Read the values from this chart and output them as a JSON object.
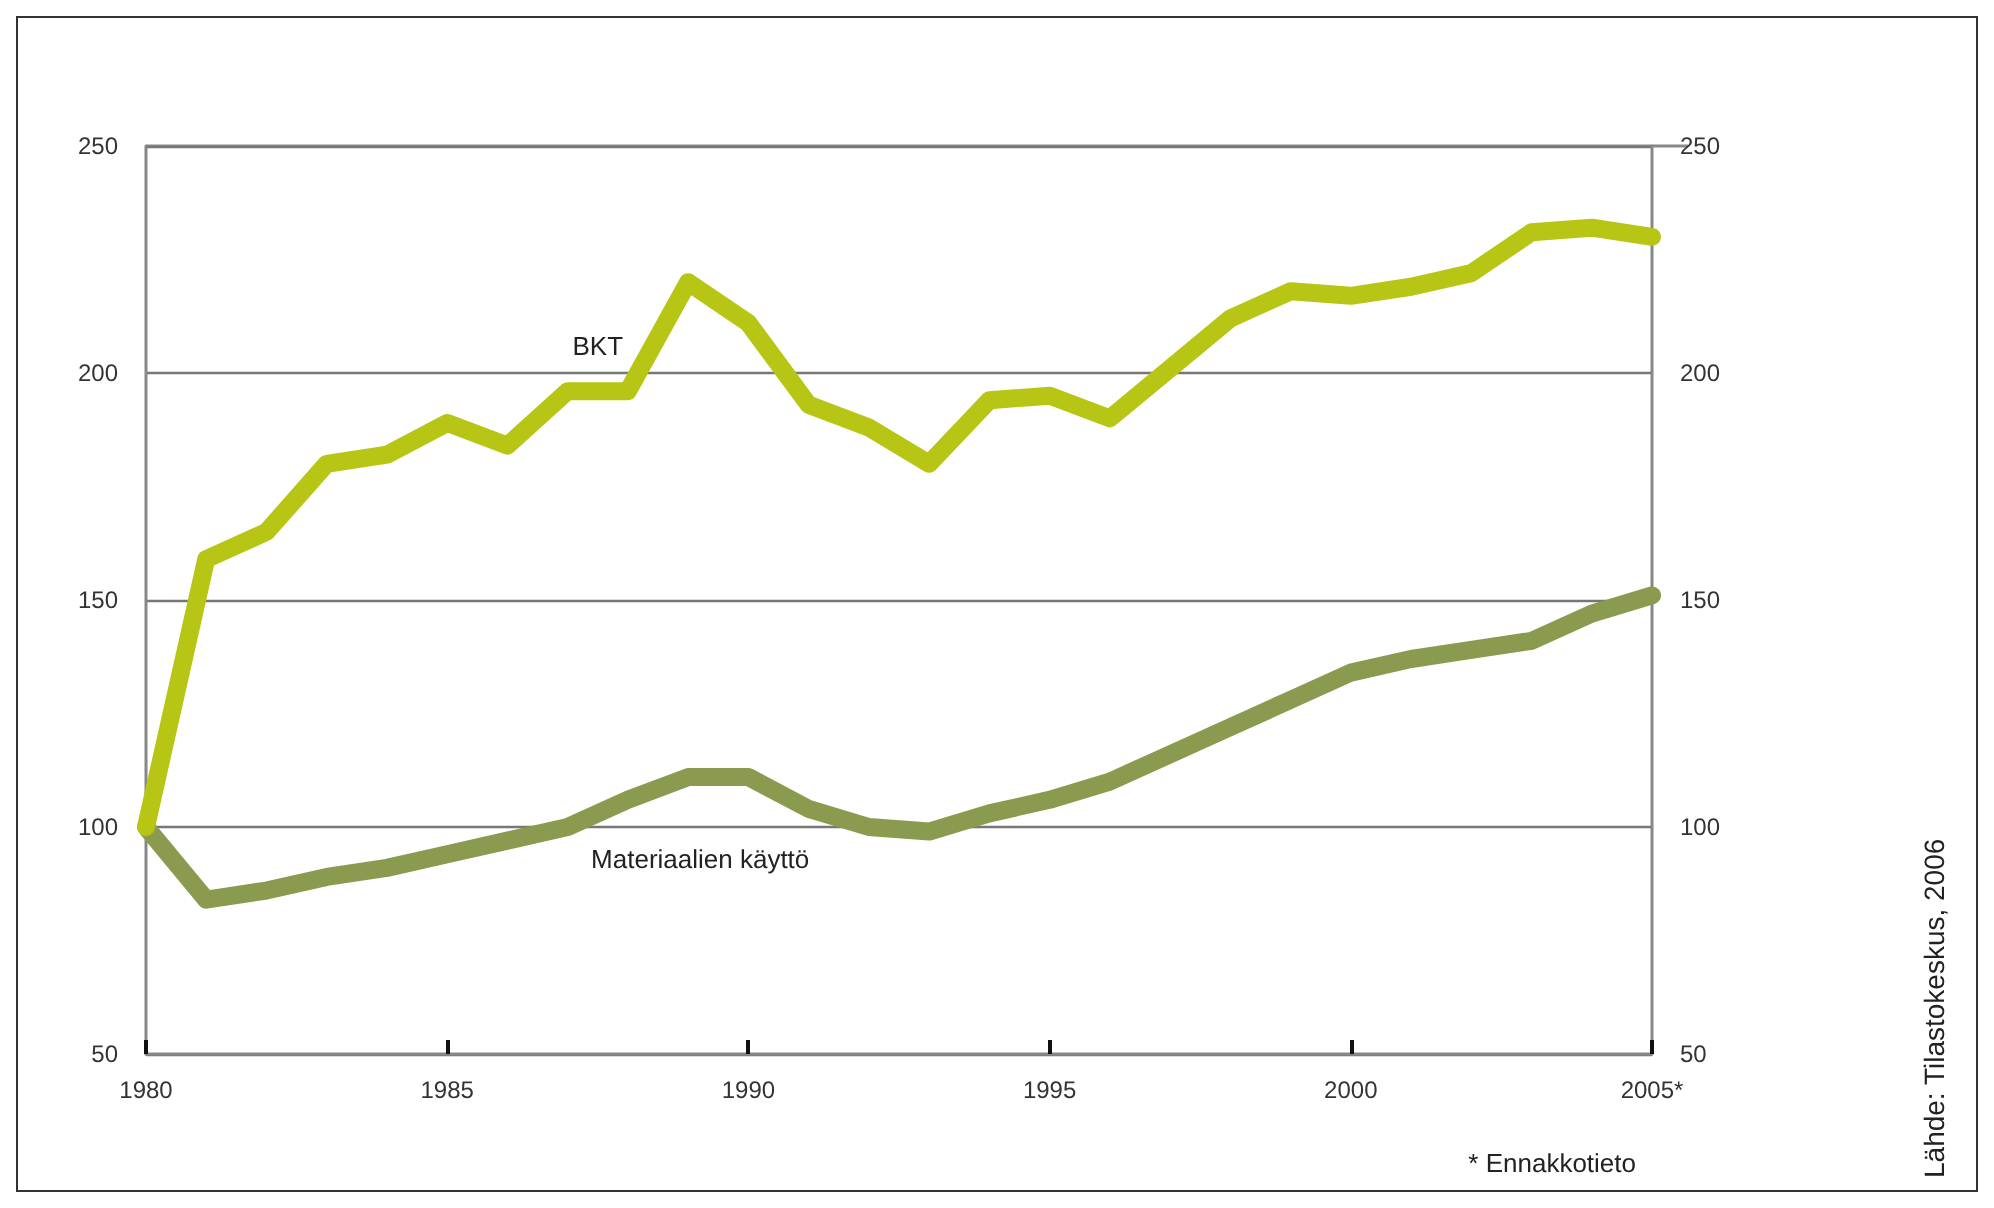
{
  "chart_data": {
    "type": "line",
    "x": [
      1980,
      1981,
      1982,
      1983,
      1984,
      1985,
      1986,
      1987,
      1988,
      1989,
      1990,
      1991,
      1992,
      1993,
      1994,
      1995,
      1996,
      1997,
      1998,
      1999,
      2000,
      2001,
      2002,
      2003,
      2004,
      2005
    ],
    "series": [
      {
        "name": "BKT",
        "color": "#b7c614",
        "values": [
          100,
          159,
          165,
          180,
          182,
          189,
          184,
          196,
          196,
          220,
          211,
          193,
          188,
          180,
          194,
          195,
          190,
          201,
          212,
          218,
          217,
          219,
          222,
          231,
          232,
          230
        ]
      },
      {
        "name": "Materiaalien käyttö",
        "color": "#8a9a4e",
        "values": [
          100,
          84,
          86,
          89,
          91,
          94,
          97,
          100,
          106,
          111,
          111,
          104,
          100,
          99,
          103,
          106,
          110,
          116,
          122,
          128,
          134,
          137,
          139,
          141,
          147,
          151
        ]
      }
    ],
    "xlim": [
      1980,
      2005
    ],
    "xticks": [
      1980,
      1985,
      1990,
      1995,
      2000,
      {
        "value": 2005,
        "label": "2005*"
      }
    ],
    "ylim": [
      50,
      250
    ],
    "yticks": [
      50,
      100,
      150,
      200,
      250
    ],
    "y2lim": [
      50,
      250
    ],
    "y2ticks": [
      50,
      100,
      150,
      200,
      250
    ],
    "grid": "y",
    "legend": false,
    "line_style": "solid",
    "annotations": [
      "* Ennakkotieto",
      "Lähde: Tilastokeskus, 2006"
    ]
  }
}
